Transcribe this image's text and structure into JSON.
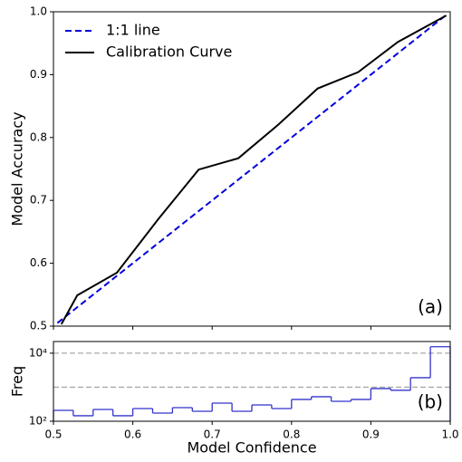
{
  "chart_data": [
    {
      "type": "line",
      "ylabel": "Model Accuracy",
      "panel_label": "(a)",
      "legend": "upper left",
      "xlim": [
        0.5,
        1.0
      ],
      "ylim": [
        0.5,
        1.0
      ],
      "xticks": [
        0.5,
        0.6,
        0.7,
        0.8,
        0.9,
        {
          "value": 1,
          "label": "1.0"
        }
      ],
      "yticks": [
        0.5,
        0.6,
        0.7,
        0.8,
        0.9,
        {
          "value": 1,
          "label": "1.0"
        }
      ],
      "series": [
        {
          "name": "1:1 line",
          "color": "#0000dd",
          "dashed": true,
          "x": [
            0.505,
            0.995
          ],
          "values": [
            0.505,
            0.995
          ]
        },
        {
          "name": "Calibration Curve",
          "color": "#000000",
          "dashed": false,
          "x": [
            0.51,
            0.53,
            0.58,
            0.632,
            0.683,
            0.733,
            0.783,
            0.833,
            0.884,
            0.934,
            0.995
          ],
          "values": [
            0.503,
            0.549,
            0.585,
            0.67,
            0.749,
            0.767,
            0.82,
            0.878,
            0.904,
            0.952,
            0.994
          ]
        }
      ]
    },
    {
      "type": "histogram",
      "xlabel": "Model Confidence",
      "ylabel": "Freq",
      "panel_label": "(b)",
      "color": "#3333cc",
      "log_y": true,
      "xlim": [
        0.5,
        1.0
      ],
      "ylim": [
        100,
        22000
      ],
      "xticks": [
        0.5,
        0.6,
        0.7,
        0.8,
        0.9,
        {
          "value": 1,
          "label": "1.0"
        }
      ],
      "yticks": [
        {
          "value": 100,
          "label": "10²"
        },
        {
          "value": 10000,
          "label": "10⁴"
        }
      ],
      "grid_lines": [
        1000,
        10000
      ],
      "bins": [
        0.5,
        0.525,
        0.55,
        0.575,
        0.6,
        0.625,
        0.65,
        0.675,
        0.7,
        0.725,
        0.75,
        0.775,
        0.8,
        0.825,
        0.85,
        0.875,
        0.9,
        0.925,
        0.95,
        0.975,
        1.0
      ],
      "values": [
        209,
        145,
        222,
        145,
        236,
        174,
        251,
        196,
        340,
        196,
        302,
        236,
        437,
        525,
        386,
        437,
        912,
        813,
        1905,
        15500
      ]
    }
  ]
}
